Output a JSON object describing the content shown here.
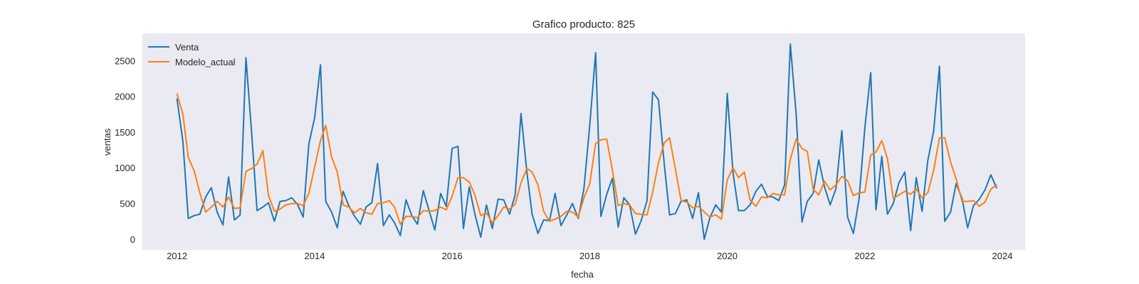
{
  "chart_data": {
    "type": "line",
    "title": "Grafico producto: 825",
    "xlabel": "fecha",
    "ylabel": "ventas",
    "x_ticks": [
      "2012",
      "2014",
      "2016",
      "2018",
      "2020",
      "2022",
      "2024"
    ],
    "y_ticks": [
      "0",
      "500",
      "1000",
      "1500",
      "2000",
      "2500"
    ],
    "xlim": [
      "2011-07-01",
      "2024-05-01"
    ],
    "ylim": [
      -150,
      2880
    ],
    "grid": false,
    "legend_position": "top-left",
    "x_start": "2012-01",
    "x_frequency": "monthly",
    "series": [
      {
        "name": "Venta",
        "color": "#1f77b4",
        "values": [
          1960,
          1370,
          290,
          330,
          350,
          590,
          720,
          380,
          200,
          870,
          270,
          340,
          2540,
          1460,
          400,
          450,
          510,
          250,
          530,
          540,
          580,
          490,
          310,
          1330,
          1700,
          2440,
          530,
          380,
          160,
          670,
          470,
          320,
          210,
          450,
          510,
          1060,
          190,
          340,
          230,
          50,
          550,
          330,
          210,
          680,
          400,
          130,
          640,
          460,
          1270,
          1300,
          150,
          730,
          350,
          30,
          480,
          150,
          560,
          550,
          350,
          620,
          1760,
          940,
          350,
          80,
          270,
          260,
          640,
          190,
          340,
          500,
          290,
          710,
          1600,
          2610,
          320,
          630,
          850,
          170,
          580,
          480,
          70,
          260,
          540,
          2060,
          1950,
          1040,
          340,
          360,
          530,
          550,
          290,
          650,
          0,
          300,
          480,
          380,
          2040,
          920,
          400,
          400,
          480,
          670,
          770,
          600,
          590,
          540,
          760,
          2730,
          1750,
          240,
          530,
          640,
          1110,
          730,
          480,
          710,
          1520,
          310,
          80,
          560,
          1560,
          2330,
          410,
          1160,
          350,
          500,
          790,
          940,
          120,
          860,
          390,
          1100,
          1510,
          2420,
          250,
          380,
          780,
          570,
          160,
          470,
          560,
          690,
          900,
          720
        ]
      },
      {
        "name": "Modelo_actual",
        "color": "#ff7f0e",
        "values": [
          2030,
          1750,
          1140,
          960,
          650,
          380,
          450,
          530,
          450,
          590,
          430,
          440,
          950,
          990,
          1050,
          1240,
          610,
          390,
          420,
          480,
          500,
          500,
          470,
          640,
          1010,
          1380,
          1590,
          1150,
          940,
          480,
          450,
          370,
          430,
          370,
          350,
          500,
          510,
          540,
          450,
          210,
          320,
          320,
          300,
          400,
          390,
          400,
          450,
          410,
          600,
          860,
          860,
          800,
          620,
          330,
          370,
          230,
          330,
          450,
          420,
          490,
          790,
          990,
          940,
          760,
          390,
          250,
          280,
          320,
          390,
          380,
          310,
          580,
          780,
          1340,
          1390,
          1400,
          970,
          470,
          500,
          480,
          360,
          350,
          340,
          660,
          1070,
          1350,
          1420,
          980,
          540,
          520,
          440,
          460,
          380,
          310,
          340,
          280,
          830,
          1000,
          860,
          940,
          550,
          460,
          590,
          580,
          640,
          620,
          620,
          1120,
          1400,
          1270,
          1230,
          700,
          620,
          810,
          690,
          760,
          880,
          820,
          610,
          650,
          660,
          1180,
          1220,
          1380,
          1130,
          570,
          620,
          670,
          630,
          700,
          580,
          650,
          960,
          1420,
          1420,
          1080,
          840,
          530,
          530,
          540,
          460,
          520,
          700,
          760
        ]
      }
    ]
  }
}
